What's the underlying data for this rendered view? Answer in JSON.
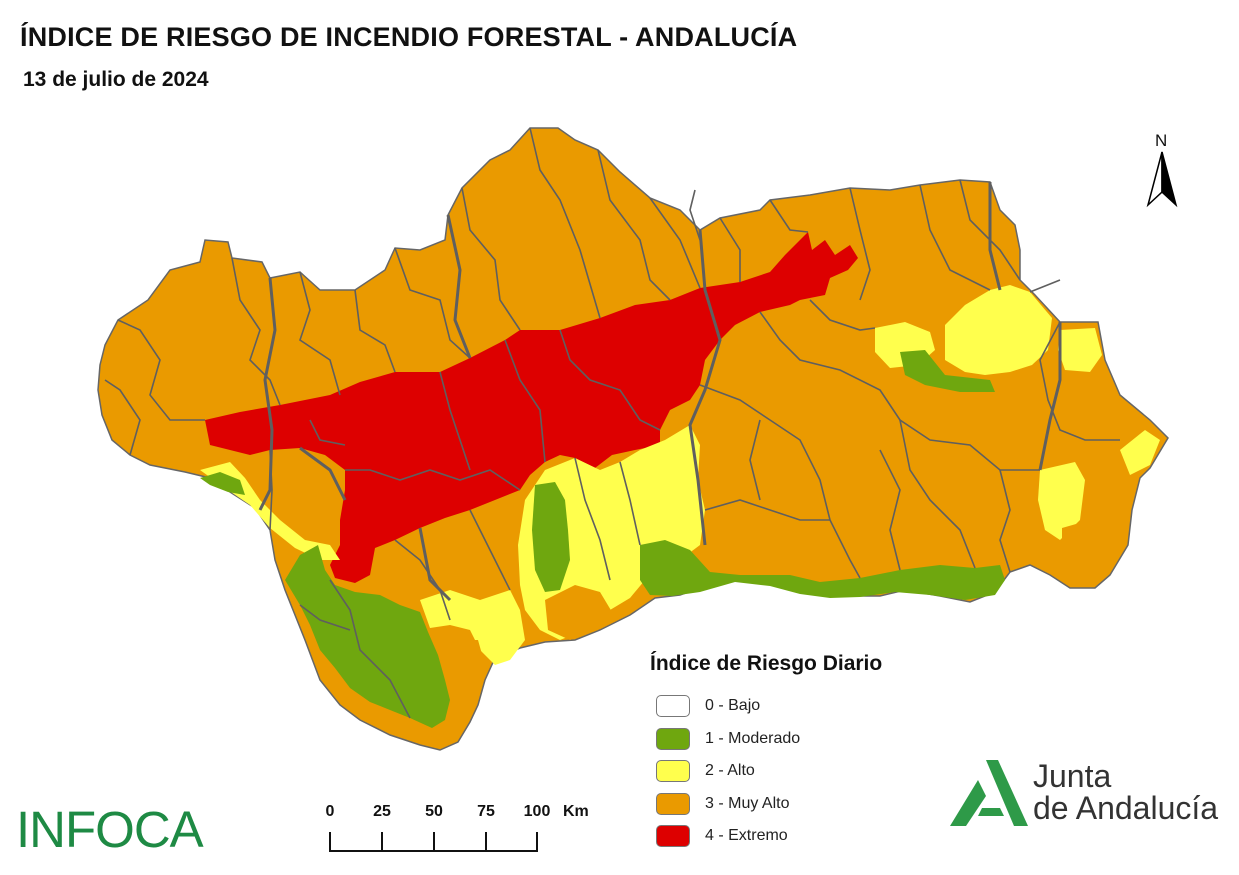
{
  "title": "ÍNDICE DE RIESGO DE INCENDIO FORESTAL - ANDALUCÍA",
  "date": "13 de julio de 2024",
  "north": "N",
  "legend": {
    "title": "Índice de Riesgo Diario",
    "items": [
      {
        "label": "0 - Bajo",
        "color": "#ffffff"
      },
      {
        "label": "1 - Moderado",
        "color": "#6fa70f"
      },
      {
        "label": "2 - Alto",
        "color": "#ffff4d"
      },
      {
        "label": "3 - Muy Alto",
        "color": "#ea9a00"
      },
      {
        "label": "4 - Extremo",
        "color": "#dd0000"
      }
    ]
  },
  "scale": {
    "labels": [
      "0",
      "25",
      "50",
      "75",
      "100"
    ],
    "unit": "Km"
  },
  "brand": "INFOCA",
  "logo": {
    "line1": "Junta",
    "line2": "de Andalucía"
  },
  "colors": {
    "muy_alto": "#ea9a00",
    "extremo": "#dd0000",
    "alto": "#ffff4d",
    "moderado": "#6fa70f",
    "borders": "#5f5f5f",
    "infoca_green": "#1e8a44",
    "junta_green": "#2e9a48"
  }
}
